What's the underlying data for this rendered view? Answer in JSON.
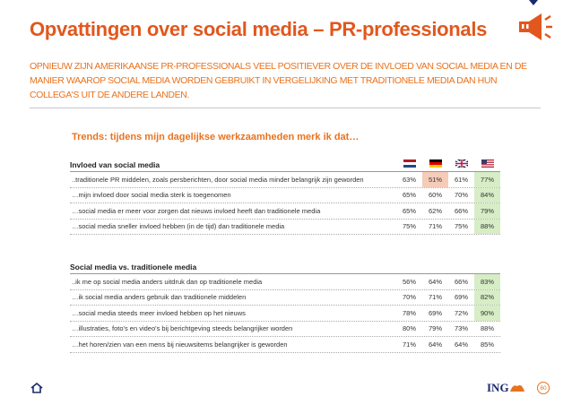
{
  "header": {
    "title": "Opvattingen over social media – PR-professionals",
    "subtitle": "OPNIEUW ZIJN AMERIKAANSE PR-PROFESSIONALS VEEL POSITIEVER OVER DE INVLOED VAN SOCIAL MEDIA EN DE MANIER WAAROP SOCIAL MEDIA WORDEN GEBRUIKT IN VERGELIJKING MET TRADITIONELE MEDIA DAN HUN COLLEGA'S UIT DE ANDERE LANDEN."
  },
  "table": {
    "title": "Trends: tijdens mijn dagelijkse werkzaamheden merk ik dat…",
    "sections": [
      {
        "header": "Invloed van social media",
        "rows": [
          {
            "label": "..traditionele PR middelen, zoals persberichten, door social media minder belangrijk zijn geworden",
            "values": [
              "63%",
              "51%",
              "61%",
              "77%"
            ],
            "highlight": [
              null,
              "#f6cbb8",
              null,
              "#d6edc6"
            ]
          },
          {
            "label": "…mijn invloed door social media sterk is toegenomen",
            "values": [
              "65%",
              "60%",
              "70%",
              "84%"
            ],
            "highlight": [
              null,
              null,
              null,
              "#d6edc6"
            ]
          },
          {
            "label": "…social media er meer voor zorgen dat nieuws invloed heeft dan traditionele media",
            "values": [
              "65%",
              "62%",
              "66%",
              "79%"
            ],
            "highlight": [
              null,
              null,
              null,
              "#d6edc6"
            ]
          },
          {
            "label": "…social media sneller invloed hebben (in de tijd) dan traditionele media",
            "values": [
              "75%",
              "71%",
              "75%",
              "88%"
            ],
            "highlight": [
              null,
              null,
              null,
              "#d6edc6"
            ]
          }
        ]
      },
      {
        "header": "Social media vs. traditionele media",
        "rows": [
          {
            "label": "..ik me op social media anders uitdruk dan op traditionele media",
            "values": [
              "56%",
              "64%",
              "66%",
              "83%"
            ],
            "highlight": [
              null,
              null,
              null,
              "#d6edc6"
            ]
          },
          {
            "label": "…ik social media anders gebruik dan traditionele middelen",
            "values": [
              "70%",
              "71%",
              "69%",
              "82%"
            ],
            "highlight": [
              null,
              null,
              null,
              "#d6edc6"
            ]
          },
          {
            "label": "…social media steeds meer invloed hebben op het nieuws",
            "values": [
              "78%",
              "69%",
              "72%",
              "90%"
            ],
            "highlight": [
              null,
              null,
              null,
              "#d6edc6"
            ]
          },
          {
            "label": "…illustraties, foto's en video's bij berichtgeving steeds belangrijker worden",
            "values": [
              "80%",
              "79%",
              "73%",
              "88%"
            ],
            "highlight": [
              null,
              null,
              null,
              null
            ]
          },
          {
            "label": "…het horen/zien van een mens bij nieuwsitems belangrijker is geworden",
            "values": [
              "71%",
              "64%",
              "64%",
              "85%"
            ],
            "highlight": [
              null,
              null,
              null,
              null
            ]
          }
        ]
      }
    ]
  },
  "footer": {
    "logo": "ING",
    "page": "60"
  }
}
